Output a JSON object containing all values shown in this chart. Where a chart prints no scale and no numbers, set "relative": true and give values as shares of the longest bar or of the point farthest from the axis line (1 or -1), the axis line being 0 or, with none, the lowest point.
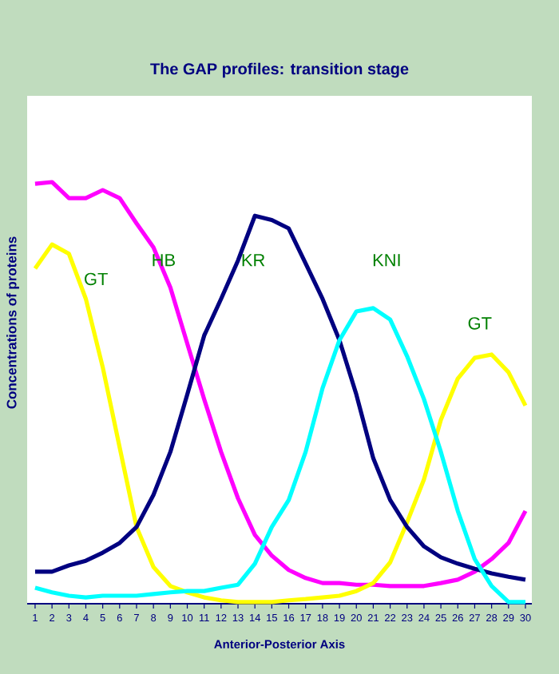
{
  "chart_data": {
    "type": "line",
    "title": "The GAP profiles: transition stage",
    "xlabel": "Anterior-Posterior Axis",
    "ylabel": "Concentrations  of proteins",
    "relative": true,
    "categories": [
      "1",
      "2",
      "3",
      "4",
      "5",
      "6",
      "7",
      "8",
      "9",
      "10",
      "11",
      "12",
      "13",
      "14",
      "15",
      "16",
      "17",
      "18",
      "19",
      "20",
      "21",
      "22",
      "23",
      "24",
      "25",
      "26",
      "27",
      "28",
      "29",
      "30"
    ],
    "series": [
      {
        "name": "HB",
        "color": "#ff00ff",
        "values": [
          0.996,
          1.0,
          0.962,
          0.962,
          0.981,
          0.962,
          0.902,
          0.845,
          0.75,
          0.617,
          0.485,
          0.36,
          0.25,
          0.163,
          0.114,
          0.08,
          0.061,
          0.049,
          0.049,
          0.045,
          0.045,
          0.042,
          0.042,
          0.042,
          0.049,
          0.057,
          0.076,
          0.106,
          0.144,
          0.22
        ]
      },
      {
        "name": "GT",
        "color": "#ffff00",
        "values": [
          0.795,
          0.852,
          0.83,
          0.723,
          0.561,
          0.371,
          0.182,
          0.087,
          0.042,
          0.027,
          0.015,
          0.008,
          0.004,
          0.004,
          0.004,
          0.008,
          0.011,
          0.015,
          0.019,
          0.03,
          0.049,
          0.098,
          0.193,
          0.295,
          0.436,
          0.534,
          0.583,
          0.591,
          0.549,
          0.47
        ]
      },
      {
        "name": "KR",
        "color": "#000080",
        "values": [
          0.076,
          0.076,
          0.091,
          0.102,
          0.121,
          0.144,
          0.182,
          0.258,
          0.36,
          0.496,
          0.636,
          0.723,
          0.814,
          0.92,
          0.91,
          0.89,
          0.807,
          0.723,
          0.625,
          0.496,
          0.345,
          0.246,
          0.182,
          0.136,
          0.11,
          0.095,
          0.083,
          0.072,
          0.064,
          0.057
        ]
      },
      {
        "name": "KNI",
        "color": "#00ffff",
        "values": [
          0.038,
          0.027,
          0.019,
          0.015,
          0.019,
          0.019,
          0.019,
          0.023,
          0.027,
          0.03,
          0.03,
          0.038,
          0.045,
          0.095,
          0.182,
          0.246,
          0.36,
          0.511,
          0.625,
          0.693,
          0.701,
          0.674,
          0.587,
          0.485,
          0.36,
          0.22,
          0.106,
          0.042,
          0.004,
          0.004
        ]
      }
    ],
    "annotations": [
      "GT"
    ],
    "grid": false,
    "marker": "none",
    "line_style": "solid"
  }
}
